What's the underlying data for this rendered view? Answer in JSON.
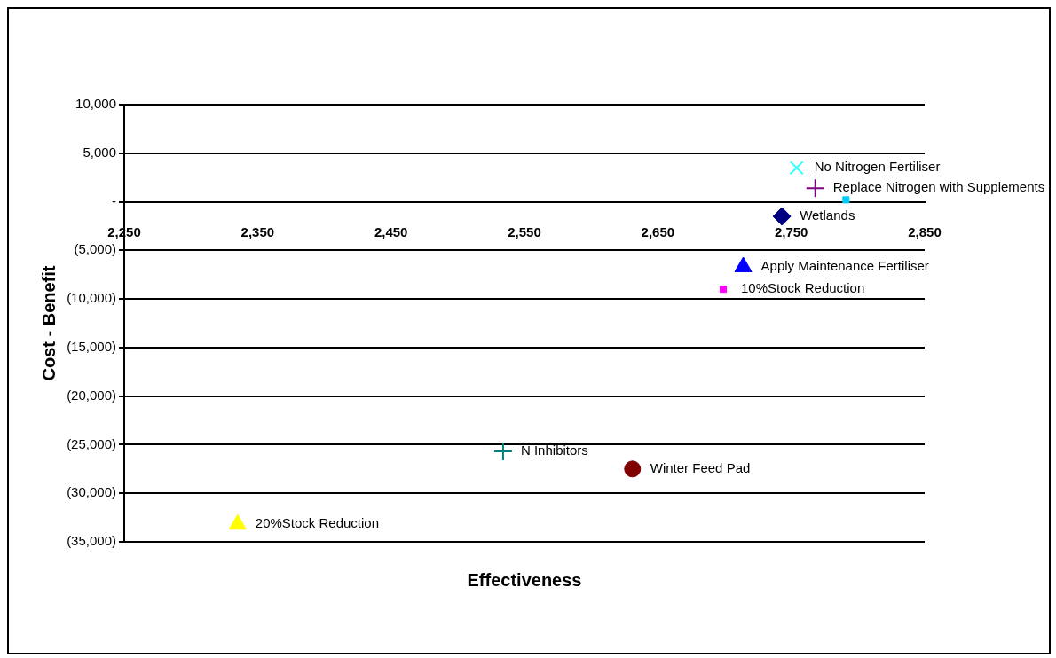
{
  "chart_data": {
    "type": "scatter",
    "xlabel": "Effectiveness",
    "ylabel": "Cost - Benefit",
    "xlim": [
      2250,
      2850
    ],
    "xticks": [
      {
        "value": 2250,
        "label": "2,250"
      },
      {
        "value": 2350,
        "label": "2,350"
      },
      {
        "value": 2450,
        "label": "2,450"
      },
      {
        "value": 2550,
        "label": "2,550"
      },
      {
        "value": 2650,
        "label": "2,650"
      },
      {
        "value": 2750,
        "label": "2,750"
      },
      {
        "value": 2850,
        "label": "2,850"
      }
    ],
    "ylim": [
      -35000,
      10000
    ],
    "yticks": [
      {
        "value": -35000,
        "label": "(35,000)"
      },
      {
        "value": -30000,
        "label": "(30,000)"
      },
      {
        "value": -25000,
        "label": "(25,000)"
      },
      {
        "value": -20000,
        "label": "(20,000)"
      },
      {
        "value": -15000,
        "label": "(15,000)"
      },
      {
        "value": -10000,
        "label": "(10,000)"
      },
      {
        "value": -5000,
        "label": "(5,000)"
      },
      {
        "value": 0,
        "label": "-"
      },
      {
        "value": 5000,
        "label": "5,000"
      },
      {
        "value": 10000,
        "label": "10,000"
      }
    ],
    "grid": "y",
    "legend": false,
    "series": [
      {
        "name": "No Nitrogen Fertiliser",
        "color": "#33ffff",
        "marker": "x",
        "x": [
          2754
        ],
        "values": [
          3500
        ]
      },
      {
        "name": "Replace Nitrogen with Supplements",
        "color": "#800080",
        "marker": "cross",
        "x": [
          2768
        ],
        "values": [
          1400
        ]
      },
      {
        "color": "#00ccff",
        "marker": "square",
        "x": [
          2791
        ],
        "values": [
          200
        ]
      },
      {
        "name": "Wetlands",
        "color": "#000080",
        "marker": "diamond",
        "x": [
          2743
        ],
        "values": [
          -1500
        ]
      },
      {
        "name": "Apply Maintenance Fertiliser",
        "color": "#0000ff",
        "marker": "triangle",
        "x": [
          2714
        ],
        "values": [
          -6700
        ]
      },
      {
        "name": "10%Stock Reduction",
        "color": "#ff00ff",
        "marker": "square",
        "x": [
          2699
        ],
        "values": [
          -9000
        ]
      },
      {
        "name": "N Inhibitors",
        "color": "#008080",
        "marker": "cross",
        "x": [
          2534
        ],
        "values": [
          -25700
        ]
      },
      {
        "name": "Winter Feed Pad",
        "color": "#800000",
        "marker": "circle",
        "x": [
          2631
        ],
        "values": [
          -27500
        ]
      },
      {
        "name": "20%Stock Reduction",
        "color": "#ffff00",
        "marker": "triangle",
        "x": [
          2335
        ],
        "values": [
          -33200
        ]
      }
    ]
  }
}
